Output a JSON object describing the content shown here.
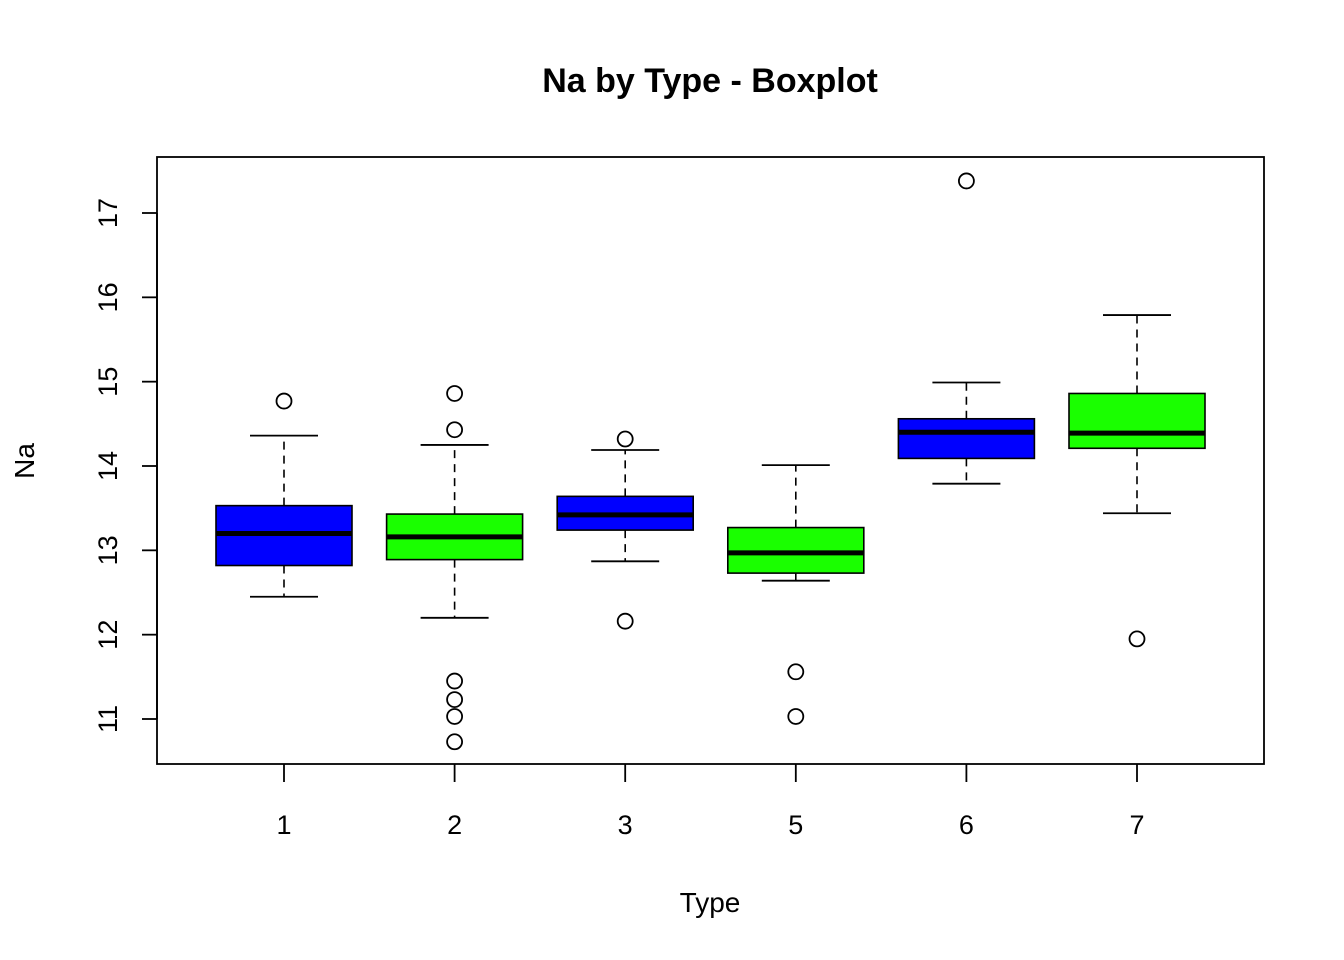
{
  "chart_data": {
    "type": "boxplot",
    "title": "Na by Type - Boxplot",
    "xlabel": "Type",
    "ylabel": "Na",
    "categories": [
      "1",
      "2",
      "3",
      "5",
      "6",
      "7"
    ],
    "box_colors": [
      "#0000ff",
      "#1aff00",
      "#0000ff",
      "#1aff00",
      "#0000ff",
      "#1aff00"
    ],
    "yticks": [
      11,
      12,
      13,
      14,
      15,
      16,
      17
    ],
    "ylim": [
      10.5,
      17.7
    ],
    "grid": false,
    "legend": "none",
    "boxes": [
      {
        "category": "1",
        "whisker_low": 12.45,
        "q1": 12.82,
        "median": 13.2,
        "q3": 13.53,
        "whisker_high": 14.36,
        "outliers": [
          14.77
        ]
      },
      {
        "category": "2",
        "whisker_low": 12.2,
        "q1": 12.89,
        "median": 13.16,
        "q3": 13.43,
        "whisker_high": 14.25,
        "outliers": [
          14.86,
          14.43,
          11.45,
          11.23,
          11.03,
          10.73
        ]
      },
      {
        "category": "3",
        "whisker_low": 12.87,
        "q1": 13.24,
        "median": 13.42,
        "q3": 13.64,
        "whisker_high": 14.19,
        "outliers": [
          14.32,
          12.16
        ]
      },
      {
        "category": "5",
        "whisker_low": 12.64,
        "q1": 12.73,
        "median": 12.97,
        "q3": 13.27,
        "whisker_high": 14.01,
        "outliers": [
          11.56,
          11.03
        ]
      },
      {
        "category": "6",
        "whisker_low": 13.79,
        "q1": 14.09,
        "median": 14.4,
        "q3": 14.56,
        "whisker_high": 14.99,
        "outliers": [
          17.38
        ]
      },
      {
        "category": "7",
        "whisker_low": 13.44,
        "q1": 14.21,
        "median": 14.39,
        "q3": 14.86,
        "whisker_high": 15.79,
        "outliers": [
          11.95
        ]
      }
    ]
  }
}
